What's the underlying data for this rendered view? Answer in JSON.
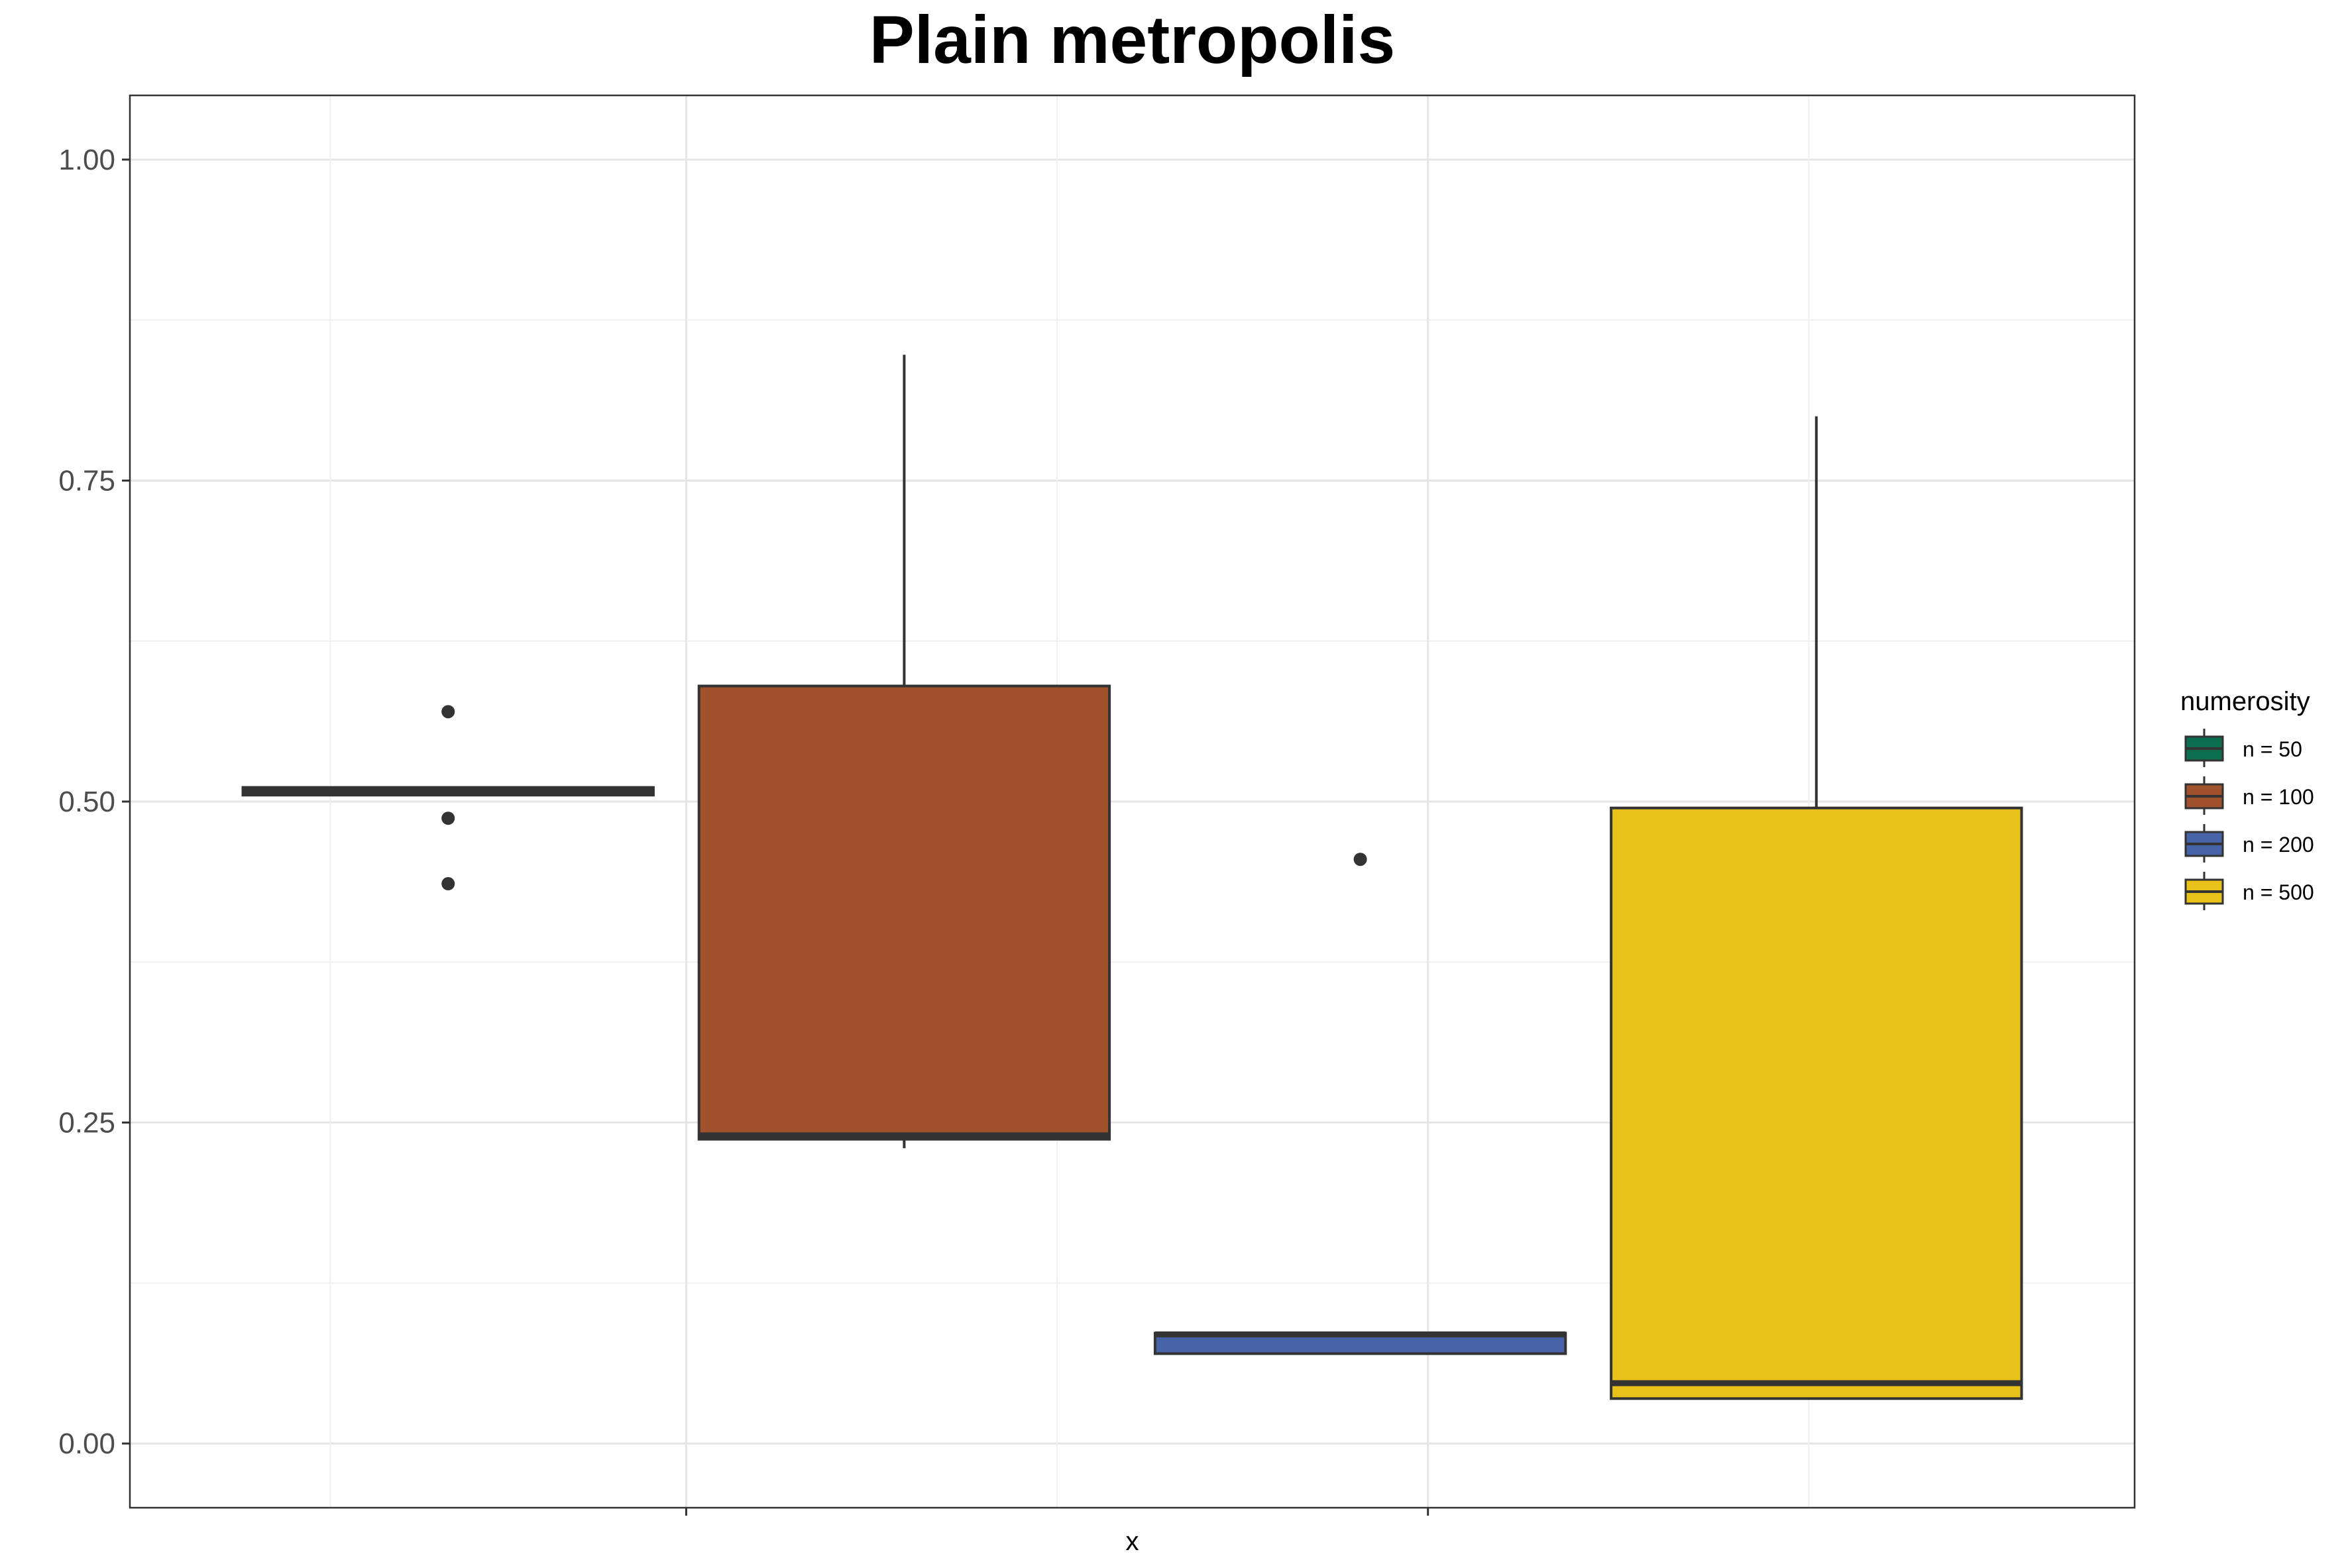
{
  "chart_data": {
    "type": "boxplot",
    "title": "Plain metropolis",
    "xlabel": "x",
    "ylabel": "",
    "ylim": [
      -0.05,
      1.05
    ],
    "y_ticks": [
      "0.00",
      "0.25",
      "0.50",
      "0.75",
      "1.00"
    ],
    "y_tick_values": [
      0,
      0.25,
      0.5,
      0.75,
      1.0
    ],
    "grid": true,
    "legend": {
      "title": "numerosity",
      "position": "right"
    },
    "series": [
      {
        "name": "n = 50",
        "color": "#0B6E4F",
        "whisker_low": 0.505,
        "q1": 0.505,
        "median": 0.508,
        "q3": 0.511,
        "whisker_high": 0.511,
        "outliers": [
          0.57,
          0.487,
          0.436
        ]
      },
      {
        "name": "n = 100",
        "color": "#A0522D",
        "whisker_low": 0.23,
        "q1": 0.237,
        "median": 0.24,
        "q3": 0.59,
        "whisker_high": 0.848,
        "outliers": []
      },
      {
        "name": "n = 200",
        "color": "#4763A8",
        "whisker_low": 0.07,
        "q1": 0.07,
        "median": 0.085,
        "q3": 0.086,
        "whisker_high": 0.086,
        "outliers": [
          0.455
        ]
      },
      {
        "name": "n = 500",
        "color": "#E8C11A",
        "whisker_low": 0.035,
        "q1": 0.035,
        "median": 0.047,
        "q3": 0.495,
        "whisker_high": 0.8,
        "outliers": []
      }
    ]
  }
}
